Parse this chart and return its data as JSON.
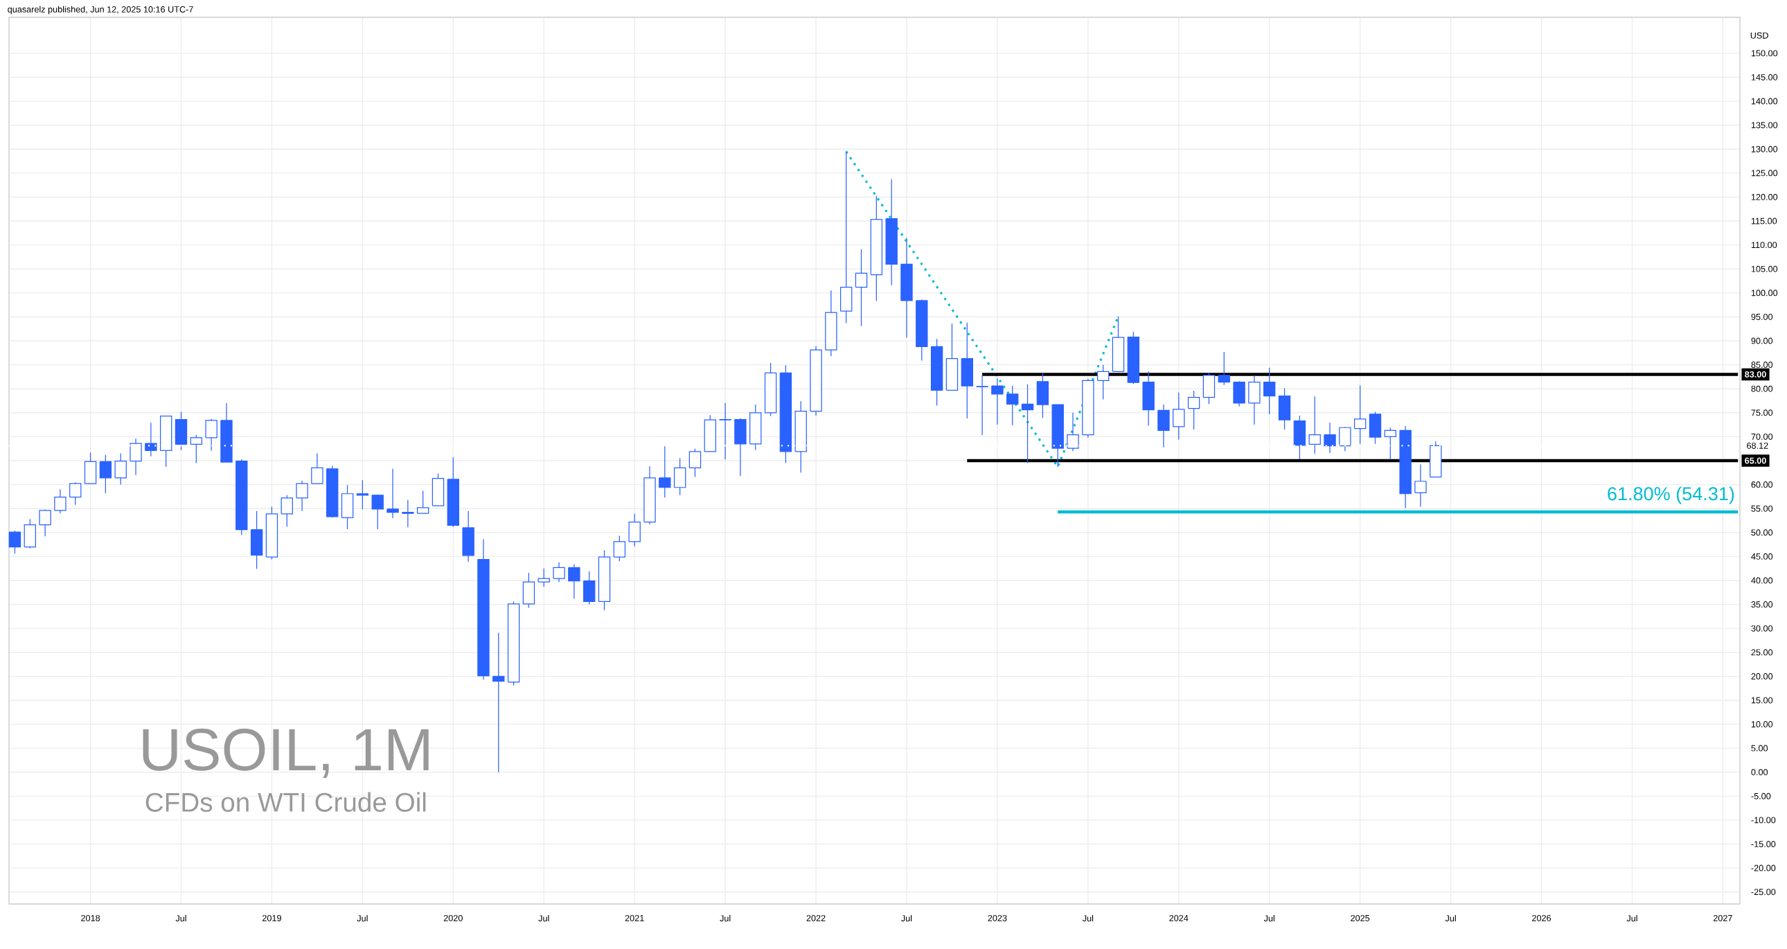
{
  "chart_data": {
    "type": "candlestick",
    "title": "USOIL, 1M",
    "subtitle": "CFDs on WTI Crude Oil",
    "ylabel": "USD",
    "annotations": [
      "quasarelz published, Jun 12, 2025 10:16 UTC-7",
      {
        "text": "61.80% (54.31)",
        "x": "2027-02",
        "y": 54.31
      }
    ],
    "grid": true,
    "xlim": [
      "2017-07-20",
      "2027-02-05"
    ],
    "ylim": [
      -27.5,
      157.5
    ],
    "xticks": [
      {
        "value": "2018-01",
        "label": "2018"
      },
      {
        "value": "2018-07",
        "label": "Jul"
      },
      {
        "value": "2019-01",
        "label": "2019"
      },
      {
        "value": "2019-07",
        "label": "Jul"
      },
      {
        "value": "2020-01",
        "label": "2020"
      },
      {
        "value": "2020-07",
        "label": "Jul"
      },
      {
        "value": "2021-01",
        "label": "2021"
      },
      {
        "value": "2021-07",
        "label": "Jul"
      },
      {
        "value": "2022-01",
        "label": "2022"
      },
      {
        "value": "2022-07",
        "label": "Jul"
      },
      {
        "value": "2023-01",
        "label": "2023"
      },
      {
        "value": "2023-07",
        "label": "Jul"
      },
      {
        "value": "2024-01",
        "label": "2024"
      },
      {
        "value": "2024-07",
        "label": "Jul"
      },
      {
        "value": "2025-01",
        "label": "2025"
      },
      {
        "value": "2025-07",
        "label": "Jul"
      },
      {
        "value": "2026-01",
        "label": "2026"
      },
      {
        "value": "2026-07",
        "label": "Jul"
      },
      {
        "value": "2027-01",
        "label": "2027"
      }
    ],
    "yticks": [
      {
        "value": -25,
        "label": "-25.00"
      },
      {
        "value": -20,
        "label": "-20.00"
      },
      {
        "value": -15,
        "label": "-15.00"
      },
      {
        "value": -10,
        "label": "-10.00"
      },
      {
        "value": -5,
        "label": "-5.00"
      },
      {
        "value": 0,
        "label": "0.00"
      },
      {
        "value": 5,
        "label": "5.00"
      },
      {
        "value": 10,
        "label": "10.00"
      },
      {
        "value": 15,
        "label": "15.00"
      },
      {
        "value": 20,
        "label": "20.00"
      },
      {
        "value": 25,
        "label": "25.00"
      },
      {
        "value": 30,
        "label": "30.00"
      },
      {
        "value": 35,
        "label": "35.00"
      },
      {
        "value": 40,
        "label": "40.00"
      },
      {
        "value": 45,
        "label": "45.00"
      },
      {
        "value": 50,
        "label": "50.00"
      },
      {
        "value": 55,
        "label": "55.00"
      },
      {
        "value": 60,
        "label": "60.00"
      },
      {
        "value": 65,
        "label": null
      },
      {
        "value": 70,
        "label": "70.00"
      },
      {
        "value": 75,
        "label": "75.00"
      },
      {
        "value": 80,
        "label": "80.00"
      },
      {
        "value": 85,
        "label": "85.00"
      },
      {
        "value": 90,
        "label": "90.00"
      },
      {
        "value": 95,
        "label": "95.00"
      },
      {
        "value": 100,
        "label": "100.00"
      },
      {
        "value": 105,
        "label": "105.00"
      },
      {
        "value": 110,
        "label": "110.00"
      },
      {
        "value": 115,
        "label": "115.00"
      },
      {
        "value": 120,
        "label": "120.00"
      },
      {
        "value": 125,
        "label": "125.00"
      },
      {
        "value": 130,
        "label": "130.00"
      },
      {
        "value": 135,
        "label": "135.00"
      },
      {
        "value": 140,
        "label": "140.00"
      },
      {
        "value": 145,
        "label": "145.00"
      },
      {
        "value": 150,
        "label": "150.00"
      }
    ],
    "ref_lines": [
      {
        "axis": "y",
        "value": 68.12,
        "label": "68.12",
        "color": "#ffffff",
        "line_style": "dotted"
      }
    ],
    "series": [
      {
        "type": "line",
        "color": "#00bcd4",
        "line_style": "dotted",
        "x": [
          "2022-03",
          "2023-05",
          "2023-09"
        ],
        "values": [
          129.5,
          63.7,
          95.1
        ]
      },
      {
        "type": "line",
        "color": "#000000",
        "line_style": "solid",
        "name": "83.00",
        "x": [
          "2022-12",
          "2027-02"
        ],
        "values": [
          83,
          83
        ]
      },
      {
        "type": "line",
        "color": "#000000",
        "line_style": "solid",
        "name": "65.00",
        "x": [
          "2022-11",
          "2027-02"
        ],
        "values": [
          65,
          65
        ]
      },
      {
        "type": "line",
        "color": "#00bcd4",
        "line_style": "solid",
        "x": [
          "2023-05",
          "2027-02"
        ],
        "values": [
          54.31,
          54.31
        ]
      },
      {
        "color": "#2962ff",
        "x": [
          "2017-08",
          "2017-09",
          "2017-10",
          "2017-11",
          "2017-12",
          "2018-01",
          "2018-02",
          "2018-03",
          "2018-04",
          "2018-05",
          "2018-06",
          "2018-07",
          "2018-08",
          "2018-09",
          "2018-10",
          "2018-11",
          "2018-12",
          "2019-01",
          "2019-02",
          "2019-03",
          "2019-04",
          "2019-05",
          "2019-06",
          "2019-07",
          "2019-08",
          "2019-09",
          "2019-10",
          "2019-11",
          "2019-12",
          "2020-01",
          "2020-02",
          "2020-03",
          "2020-04",
          "2020-05",
          "2020-06",
          "2020-07",
          "2020-08",
          "2020-09",
          "2020-10",
          "2020-11",
          "2020-12",
          "2021-01",
          "2021-02",
          "2021-03",
          "2021-04",
          "2021-05",
          "2021-06",
          "2021-07",
          "2021-08",
          "2021-09",
          "2021-10",
          "2021-11",
          "2021-12",
          "2022-01",
          "2022-02",
          "2022-03",
          "2022-04",
          "2022-05",
          "2022-06",
          "2022-07",
          "2022-08",
          "2022-09",
          "2022-10",
          "2022-11",
          "2022-12",
          "2023-01",
          "2023-02",
          "2023-03",
          "2023-04",
          "2023-05",
          "2023-06",
          "2023-07",
          "2023-08",
          "2023-09",
          "2023-10",
          "2023-11",
          "2023-12",
          "2024-01",
          "2024-02",
          "2024-03",
          "2024-04",
          "2024-05",
          "2024-06",
          "2024-07",
          "2024-08",
          "2024-09",
          "2024-10",
          "2024-11",
          "2024-12",
          "2025-01",
          "2025-02",
          "2025-03",
          "2025-04",
          "2025-05",
          "2025-06"
        ],
        "ohlc": [
          [
            50.1,
            50.4,
            45.6,
            47.0
          ],
          [
            47.0,
            52.8,
            46.7,
            51.6
          ],
          [
            51.6,
            54.8,
            49.2,
            54.6
          ],
          [
            54.6,
            59.0,
            54.0,
            57.4
          ],
          [
            57.4,
            60.5,
            55.8,
            60.2
          ],
          [
            60.2,
            66.7,
            60.2,
            64.8
          ],
          [
            64.8,
            66.2,
            58.2,
            61.4
          ],
          [
            61.4,
            66.5,
            60.0,
            64.9
          ],
          [
            64.9,
            69.6,
            62.0,
            68.6
          ],
          [
            68.6,
            72.9,
            65.9,
            67.1
          ],
          [
            67.1,
            74.4,
            63.7,
            74.3
          ],
          [
            73.6,
            75.2,
            67.2,
            68.4
          ],
          [
            68.4,
            70.4,
            64.5,
            69.8
          ],
          [
            69.8,
            73.7,
            67.1,
            73.4
          ],
          [
            73.4,
            77.0,
            64.7,
            64.7
          ],
          [
            64.9,
            65.3,
            49.5,
            50.6
          ],
          [
            50.6,
            54.5,
            42.4,
            45.3
          ],
          [
            44.9,
            55.4,
            44.4,
            53.9
          ],
          [
            53.9,
            57.8,
            51.2,
            57.2
          ],
          [
            57.2,
            60.8,
            54.5,
            60.2
          ],
          [
            60.2,
            66.5,
            60.2,
            63.5
          ],
          [
            63.3,
            63.9,
            53.1,
            53.3
          ],
          [
            53.1,
            59.9,
            50.7,
            58.1
          ],
          [
            58.1,
            60.9,
            54.9,
            57.8
          ],
          [
            57.8,
            57.9,
            50.7,
            54.9
          ],
          [
            54.9,
            63.3,
            53.0,
            54.2
          ],
          [
            54.2,
            56.8,
            51.1,
            54.0
          ],
          [
            54.0,
            58.7,
            54.0,
            55.2
          ],
          [
            55.6,
            62.3,
            55.6,
            61.3
          ],
          [
            61.1,
            65.7,
            51.2,
            51.5
          ],
          [
            51.0,
            54.5,
            43.9,
            45.2
          ],
          [
            44.4,
            48.6,
            19.3,
            20.1
          ],
          [
            20.0,
            29.1,
            0.0,
            19.0
          ],
          [
            18.8,
            35.6,
            18.1,
            35.1
          ],
          [
            35.1,
            41.6,
            34.3,
            39.7
          ],
          [
            39.7,
            42.5,
            38.7,
            40.4
          ],
          [
            40.4,
            43.8,
            39.7,
            42.7
          ],
          [
            42.7,
            43.4,
            36.2,
            39.9
          ],
          [
            39.9,
            41.9,
            35.0,
            35.6
          ],
          [
            35.6,
            46.3,
            33.8,
            44.9
          ],
          [
            44.9,
            49.3,
            44.0,
            48.1
          ],
          [
            48.1,
            53.9,
            47.1,
            52.2
          ],
          [
            52.2,
            63.8,
            51.7,
            61.4
          ],
          [
            61.4,
            68.0,
            57.3,
            59.4
          ],
          [
            59.4,
            65.5,
            57.8,
            63.5
          ],
          [
            63.5,
            67.5,
            61.6,
            66.9
          ],
          [
            66.9,
            74.5,
            66.9,
            73.5
          ],
          [
            73.6,
            77.0,
            65.2,
            73.5
          ],
          [
            73.6,
            73.8,
            61.8,
            68.5
          ],
          [
            68.5,
            76.7,
            67.2,
            75.0
          ],
          [
            75.0,
            85.4,
            74.3,
            83.3
          ],
          [
            83.3,
            84.9,
            64.5,
            66.9
          ],
          [
            66.9,
            77.4,
            62.5,
            75.3
          ],
          [
            75.3,
            88.9,
            74.4,
            88.1
          ],
          [
            88.1,
            100.5,
            86.8,
            95.9
          ],
          [
            96.2,
            129.5,
            93.7,
            101.2
          ],
          [
            101.2,
            109.1,
            93.1,
            104.1
          ],
          [
            103.8,
            120.2,
            98.3,
            115.3
          ],
          [
            115.5,
            123.7,
            101.6,
            106.0
          ],
          [
            106.0,
            111.5,
            90.7,
            98.4
          ],
          [
            98.4,
            98.6,
            85.9,
            88.8
          ],
          [
            88.8,
            90.4,
            76.5,
            79.7
          ],
          [
            79.7,
            93.6,
            79.7,
            86.3
          ],
          [
            86.3,
            93.8,
            73.8,
            80.6
          ],
          [
            80.4,
            82.8,
            70.3,
            80.5
          ],
          [
            80.6,
            82.2,
            72.5,
            78.9
          ],
          [
            78.9,
            80.6,
            72.4,
            76.8
          ],
          [
            76.8,
            80.9,
            64.5,
            75.6
          ],
          [
            81.5,
            83.3,
            73.9,
            76.7
          ],
          [
            76.7,
            76.7,
            63.7,
            67.6
          ],
          [
            67.6,
            75.0,
            67.0,
            70.4
          ],
          [
            70.4,
            82.1,
            69.8,
            81.7
          ],
          [
            81.7,
            85.0,
            77.8,
            83.6
          ],
          [
            83.6,
            95.1,
            83.6,
            90.7
          ],
          [
            90.8,
            91.9,
            81.0,
            81.3
          ],
          [
            81.4,
            83.6,
            72.3,
            75.6
          ],
          [
            75.5,
            76.7,
            67.8,
            71.3
          ],
          [
            72.1,
            79.2,
            69.4,
            75.7
          ],
          [
            75.9,
            79.6,
            71.5,
            78.2
          ],
          [
            78.2,
            83.3,
            76.8,
            82.8
          ],
          [
            82.8,
            87.7,
            80.8,
            81.4
          ],
          [
            81.4,
            81.6,
            76.3,
            77.0
          ],
          [
            77.0,
            82.8,
            72.5,
            81.4
          ],
          [
            81.4,
            84.4,
            74.7,
            78.5
          ],
          [
            78.5,
            80.1,
            71.5,
            73.5
          ],
          [
            73.3,
            74.4,
            65.3,
            68.2
          ],
          [
            68.4,
            78.4,
            66.4,
            70.4
          ],
          [
            70.4,
            72.9,
            66.6,
            68.1
          ],
          [
            68.1,
            72.0,
            67.0,
            71.9
          ],
          [
            71.7,
            80.7,
            68.5,
            73.7
          ],
          [
            74.7,
            75.2,
            68.5,
            69.9
          ],
          [
            70.0,
            71.9,
            65.2,
            71.3
          ],
          [
            71.3,
            72.2,
            55.1,
            58.1
          ],
          [
            58.3,
            64.2,
            55.4,
            60.7
          ],
          [
            61.6,
            69.0,
            61.6,
            68.12
          ]
        ]
      }
    ]
  }
}
